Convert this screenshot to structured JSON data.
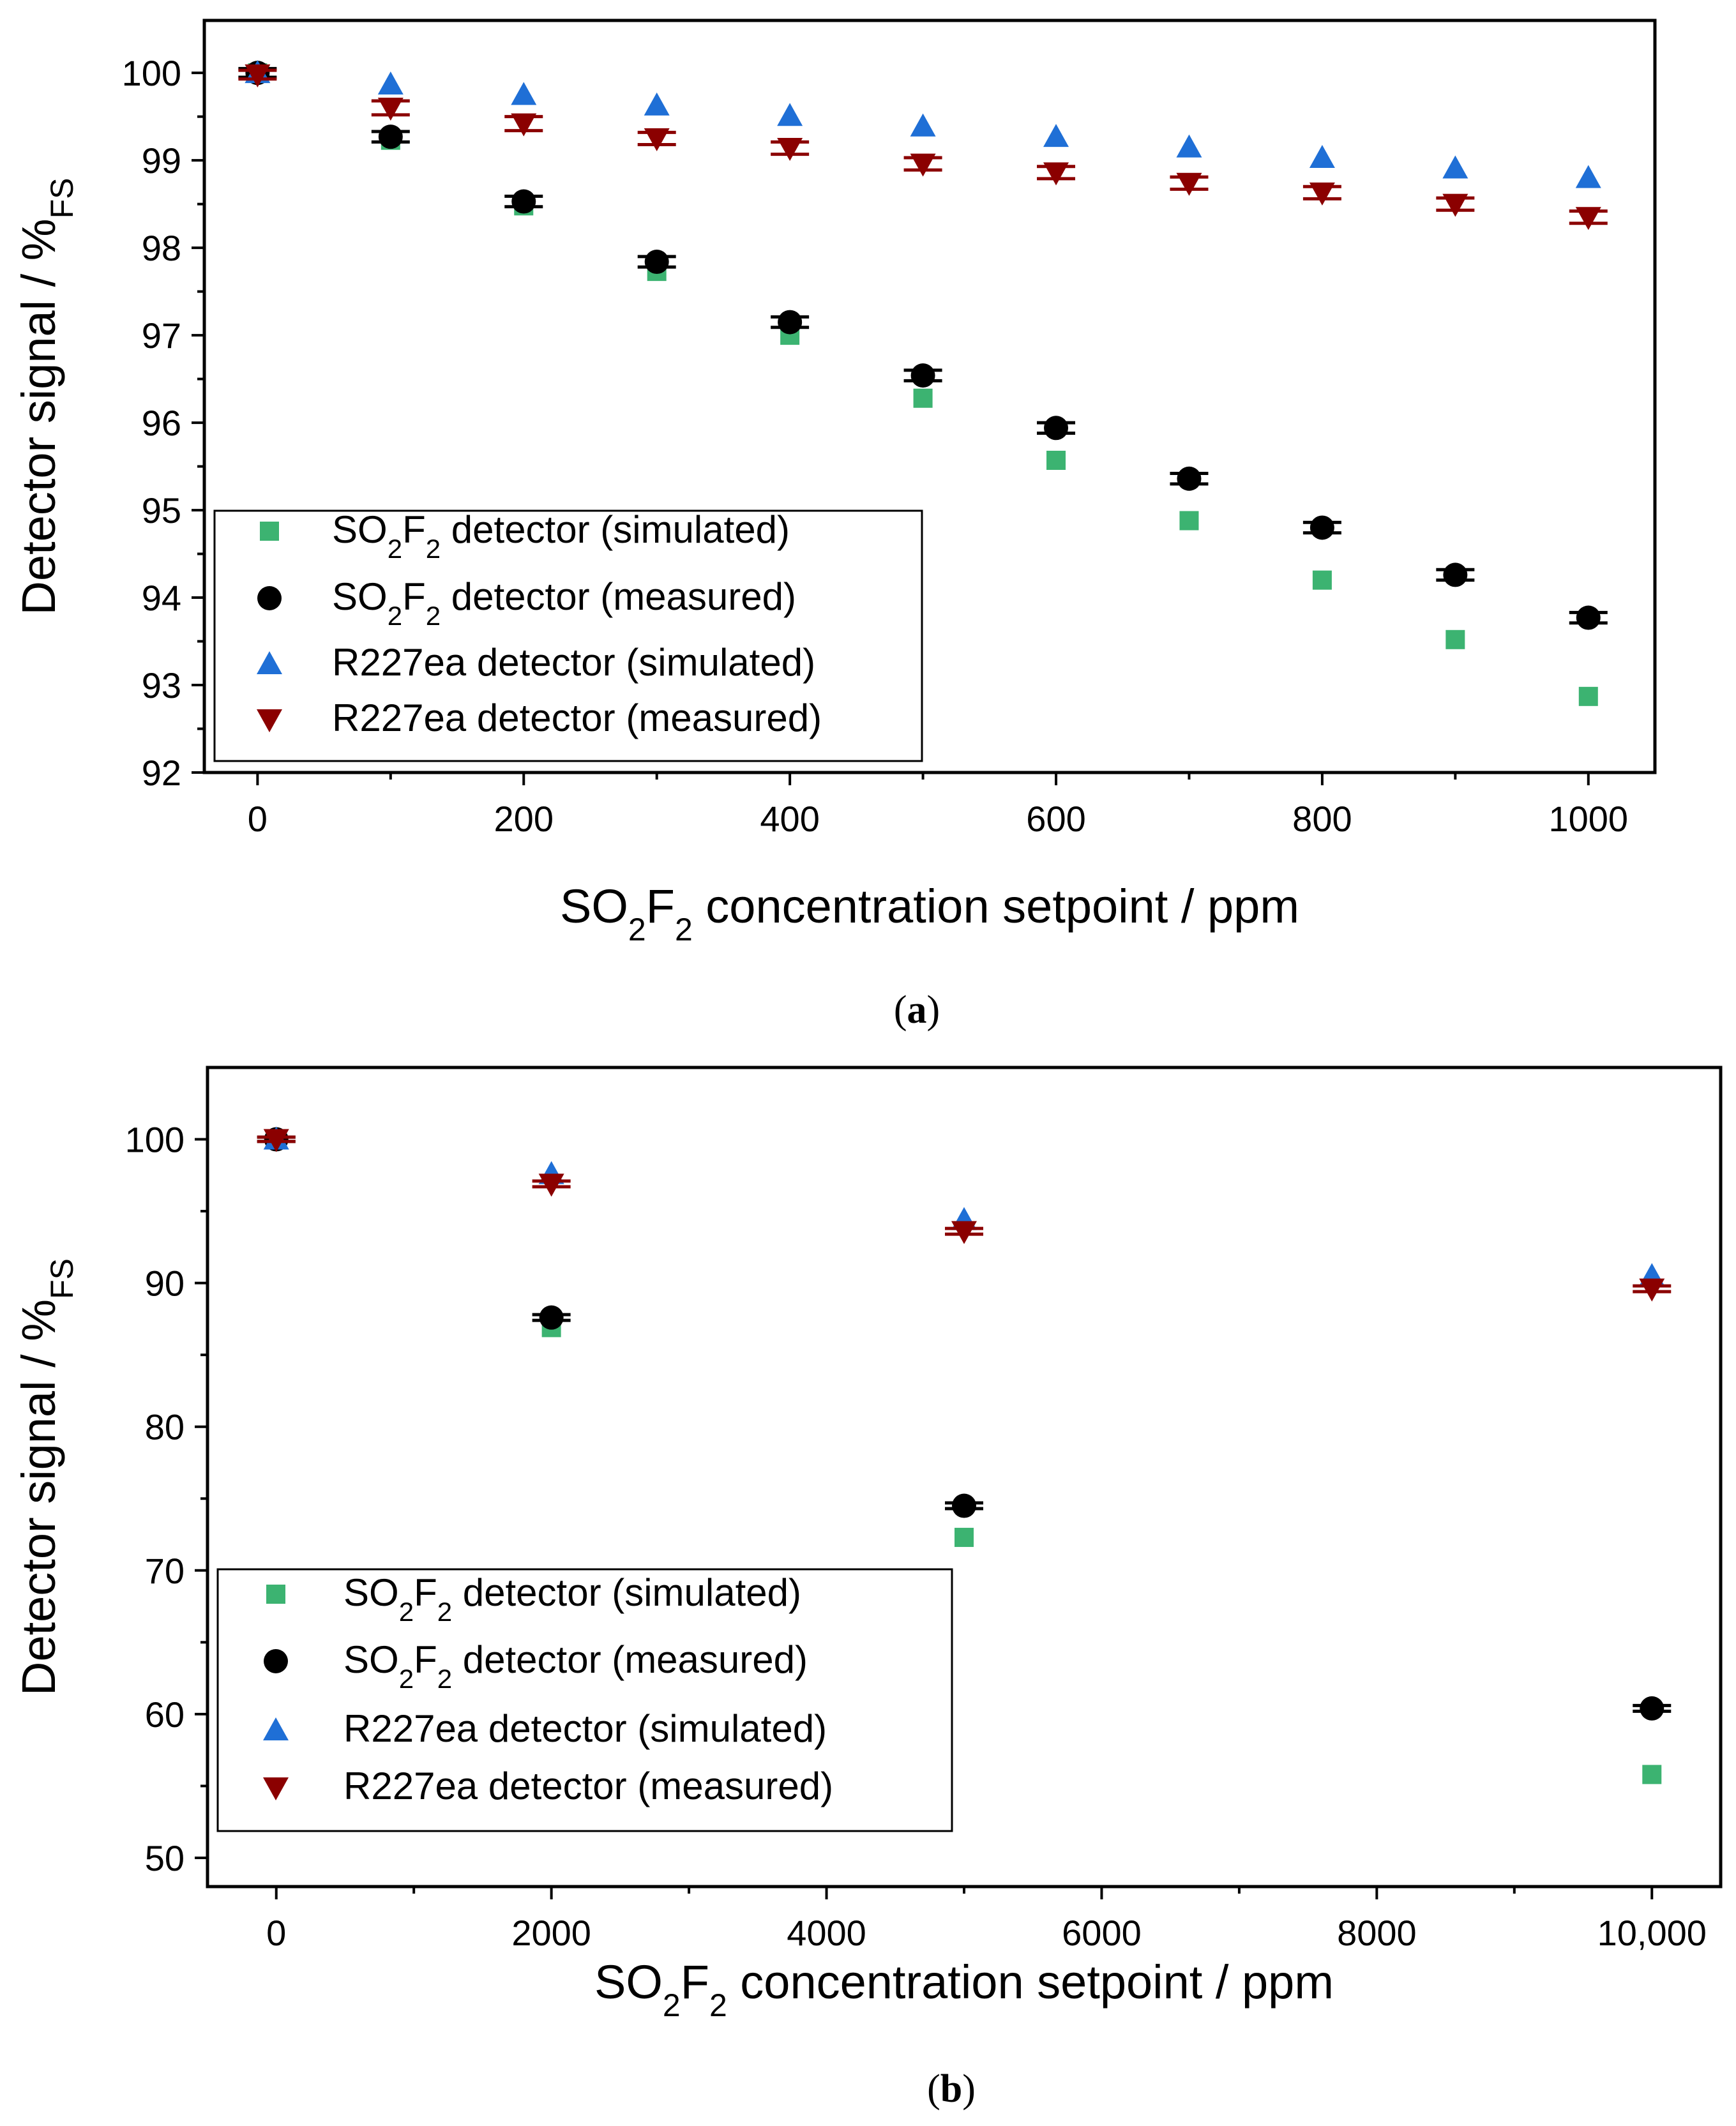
{
  "chart_data": [
    {
      "type": "scatter",
      "panel_label": "a",
      "xlabel_parts": {
        "pre": "SO",
        "sub1": "2",
        "mid": "F",
        "sub2": "2",
        "post": " concentration setpoint / ppm"
      },
      "ylabel_parts": {
        "main": "Detector signal / %",
        "sub": "FS"
      },
      "xlim": [
        -40,
        1050
      ],
      "ylim": [
        92,
        100.6
      ],
      "xticks": [
        0,
        200,
        400,
        600,
        800,
        1000
      ],
      "xtick_labels": [
        "0",
        "200",
        "400",
        "600",
        "800",
        "1000"
      ],
      "yticks": [
        92,
        93,
        94,
        95,
        96,
        97,
        98,
        99,
        100
      ],
      "ytick_labels": [
        "92",
        "93",
        "94",
        "95",
        "96",
        "97",
        "98",
        "99",
        "100"
      ],
      "legend_position": "bottom-left",
      "series": [
        {
          "name": "SO2F2 detector (simulated)",
          "marker": "square",
          "color": "#3cb371",
          "x": [
            0,
            100,
            200,
            300,
            400,
            500,
            600,
            700,
            800,
            900,
            1000
          ],
          "y": [
            100,
            99.23,
            98.48,
            97.73,
            97.0,
            96.28,
            95.57,
            94.88,
            94.2,
            93.52,
            92.87
          ]
        },
        {
          "name": "SO2F2 detector (measured)",
          "marker": "circle",
          "color": "#000000",
          "x": [
            0,
            100,
            200,
            300,
            400,
            500,
            600,
            700,
            800,
            900,
            1000
          ],
          "y": [
            100,
            99.27,
            98.53,
            97.84,
            97.15,
            96.54,
            95.94,
            95.36,
            94.8,
            94.26,
            93.77
          ],
          "err": [
            0.05,
            0.06,
            0.06,
            0.06,
            0.06,
            0.06,
            0.06,
            0.06,
            0.06,
            0.06,
            0.06
          ]
        },
        {
          "name": "R227ea detector (simulated)",
          "marker": "triangle-up",
          "color": "#1f6fd6",
          "x": [
            0,
            100,
            200,
            300,
            400,
            500,
            600,
            700,
            800,
            900,
            1000
          ],
          "y": [
            100,
            99.87,
            99.75,
            99.63,
            99.51,
            99.39,
            99.27,
            99.15,
            99.03,
            98.91,
            98.8
          ]
        },
        {
          "name": "R227ea detector (measured)",
          "marker": "triangle-down",
          "color": "#8b0000",
          "x": [
            0,
            100,
            200,
            300,
            400,
            500,
            600,
            700,
            800,
            900,
            1000
          ],
          "y": [
            99.98,
            99.6,
            99.42,
            99.25,
            99.14,
            98.96,
            98.86,
            98.74,
            98.63,
            98.5,
            98.35
          ],
          "err": [
            0.05,
            0.08,
            0.08,
            0.07,
            0.07,
            0.07,
            0.07,
            0.07,
            0.07,
            0.07,
            0.07
          ]
        }
      ],
      "legend_labels": [
        {
          "pre": "SO",
          "sub1": "2",
          "mid": "F",
          "sub2": "2",
          "post": " detector (simulated)"
        },
        {
          "pre": "SO",
          "sub1": "2",
          "mid": "F",
          "sub2": "2",
          "post": " detector (measured)"
        },
        {
          "pre": "R227ea detector (simulated)",
          "sub1": "",
          "mid": "",
          "sub2": "",
          "post": ""
        },
        {
          "pre": "R227ea detector (measured)",
          "sub1": "",
          "mid": "",
          "sub2": "",
          "post": ""
        }
      ]
    },
    {
      "type": "scatter",
      "panel_label": "b",
      "xlabel_parts": {
        "pre": "SO",
        "sub1": "2",
        "mid": "F",
        "sub2": "2",
        "post": " concentration setpoint / ppm"
      },
      "ylabel_parts": {
        "main": "Detector signal / %",
        "sub": "FS"
      },
      "xlim": [
        -500,
        10500
      ],
      "ylim": [
        48,
        105
      ],
      "xticks": [
        0,
        2000,
        4000,
        6000,
        8000,
        10000
      ],
      "xtick_labels": [
        "0",
        "2000",
        "4000",
        "6000",
        "8000",
        "10,000"
      ],
      "yticks": [
        50,
        60,
        70,
        80,
        90,
        100
      ],
      "ytick_labels": [
        "50",
        "60",
        "70",
        "80",
        "90",
        "100"
      ],
      "legend_position": "bottom-left",
      "series": [
        {
          "name": "SO2F2 detector (simulated)",
          "marker": "square",
          "color": "#3cb371",
          "x": [
            0,
            2000,
            5000,
            10000
          ],
          "y": [
            100,
            86.9,
            72.3,
            55.8
          ]
        },
        {
          "name": "SO2F2 detector (measured)",
          "marker": "circle",
          "color": "#000000",
          "x": [
            0,
            2000,
            5000,
            10000
          ],
          "y": [
            100,
            87.6,
            74.5,
            60.4
          ],
          "err": [
            0.15,
            0.2,
            0.2,
            0.2
          ]
        },
        {
          "name": "R227ea detector (simulated)",
          "marker": "triangle-up",
          "color": "#1f6fd6",
          "x": [
            0,
            2000,
            5000,
            10000
          ],
          "y": [
            100,
            97.6,
            94.4,
            90.5
          ]
        },
        {
          "name": "R227ea detector (measured)",
          "marker": "triangle-down",
          "color": "#8b0000",
          "x": [
            0,
            2000,
            5000,
            10000
          ],
          "y": [
            100,
            96.9,
            93.6,
            89.6
          ],
          "err": [
            0.15,
            0.2,
            0.2,
            0.2
          ]
        }
      ],
      "legend_labels": [
        {
          "pre": "SO",
          "sub1": "2",
          "mid": "F",
          "sub2": "2",
          "post": " detector (simulated)"
        },
        {
          "pre": "SO",
          "sub1": "2",
          "mid": "F",
          "sub2": "2",
          "post": " detector (measured)"
        },
        {
          "pre": "R227ea detector (simulated)",
          "sub1": "",
          "mid": "",
          "sub2": "",
          "post": ""
        },
        {
          "pre": "R227ea detector (measured)",
          "sub1": "",
          "mid": "",
          "sub2": "",
          "post": ""
        }
      ]
    }
  ]
}
